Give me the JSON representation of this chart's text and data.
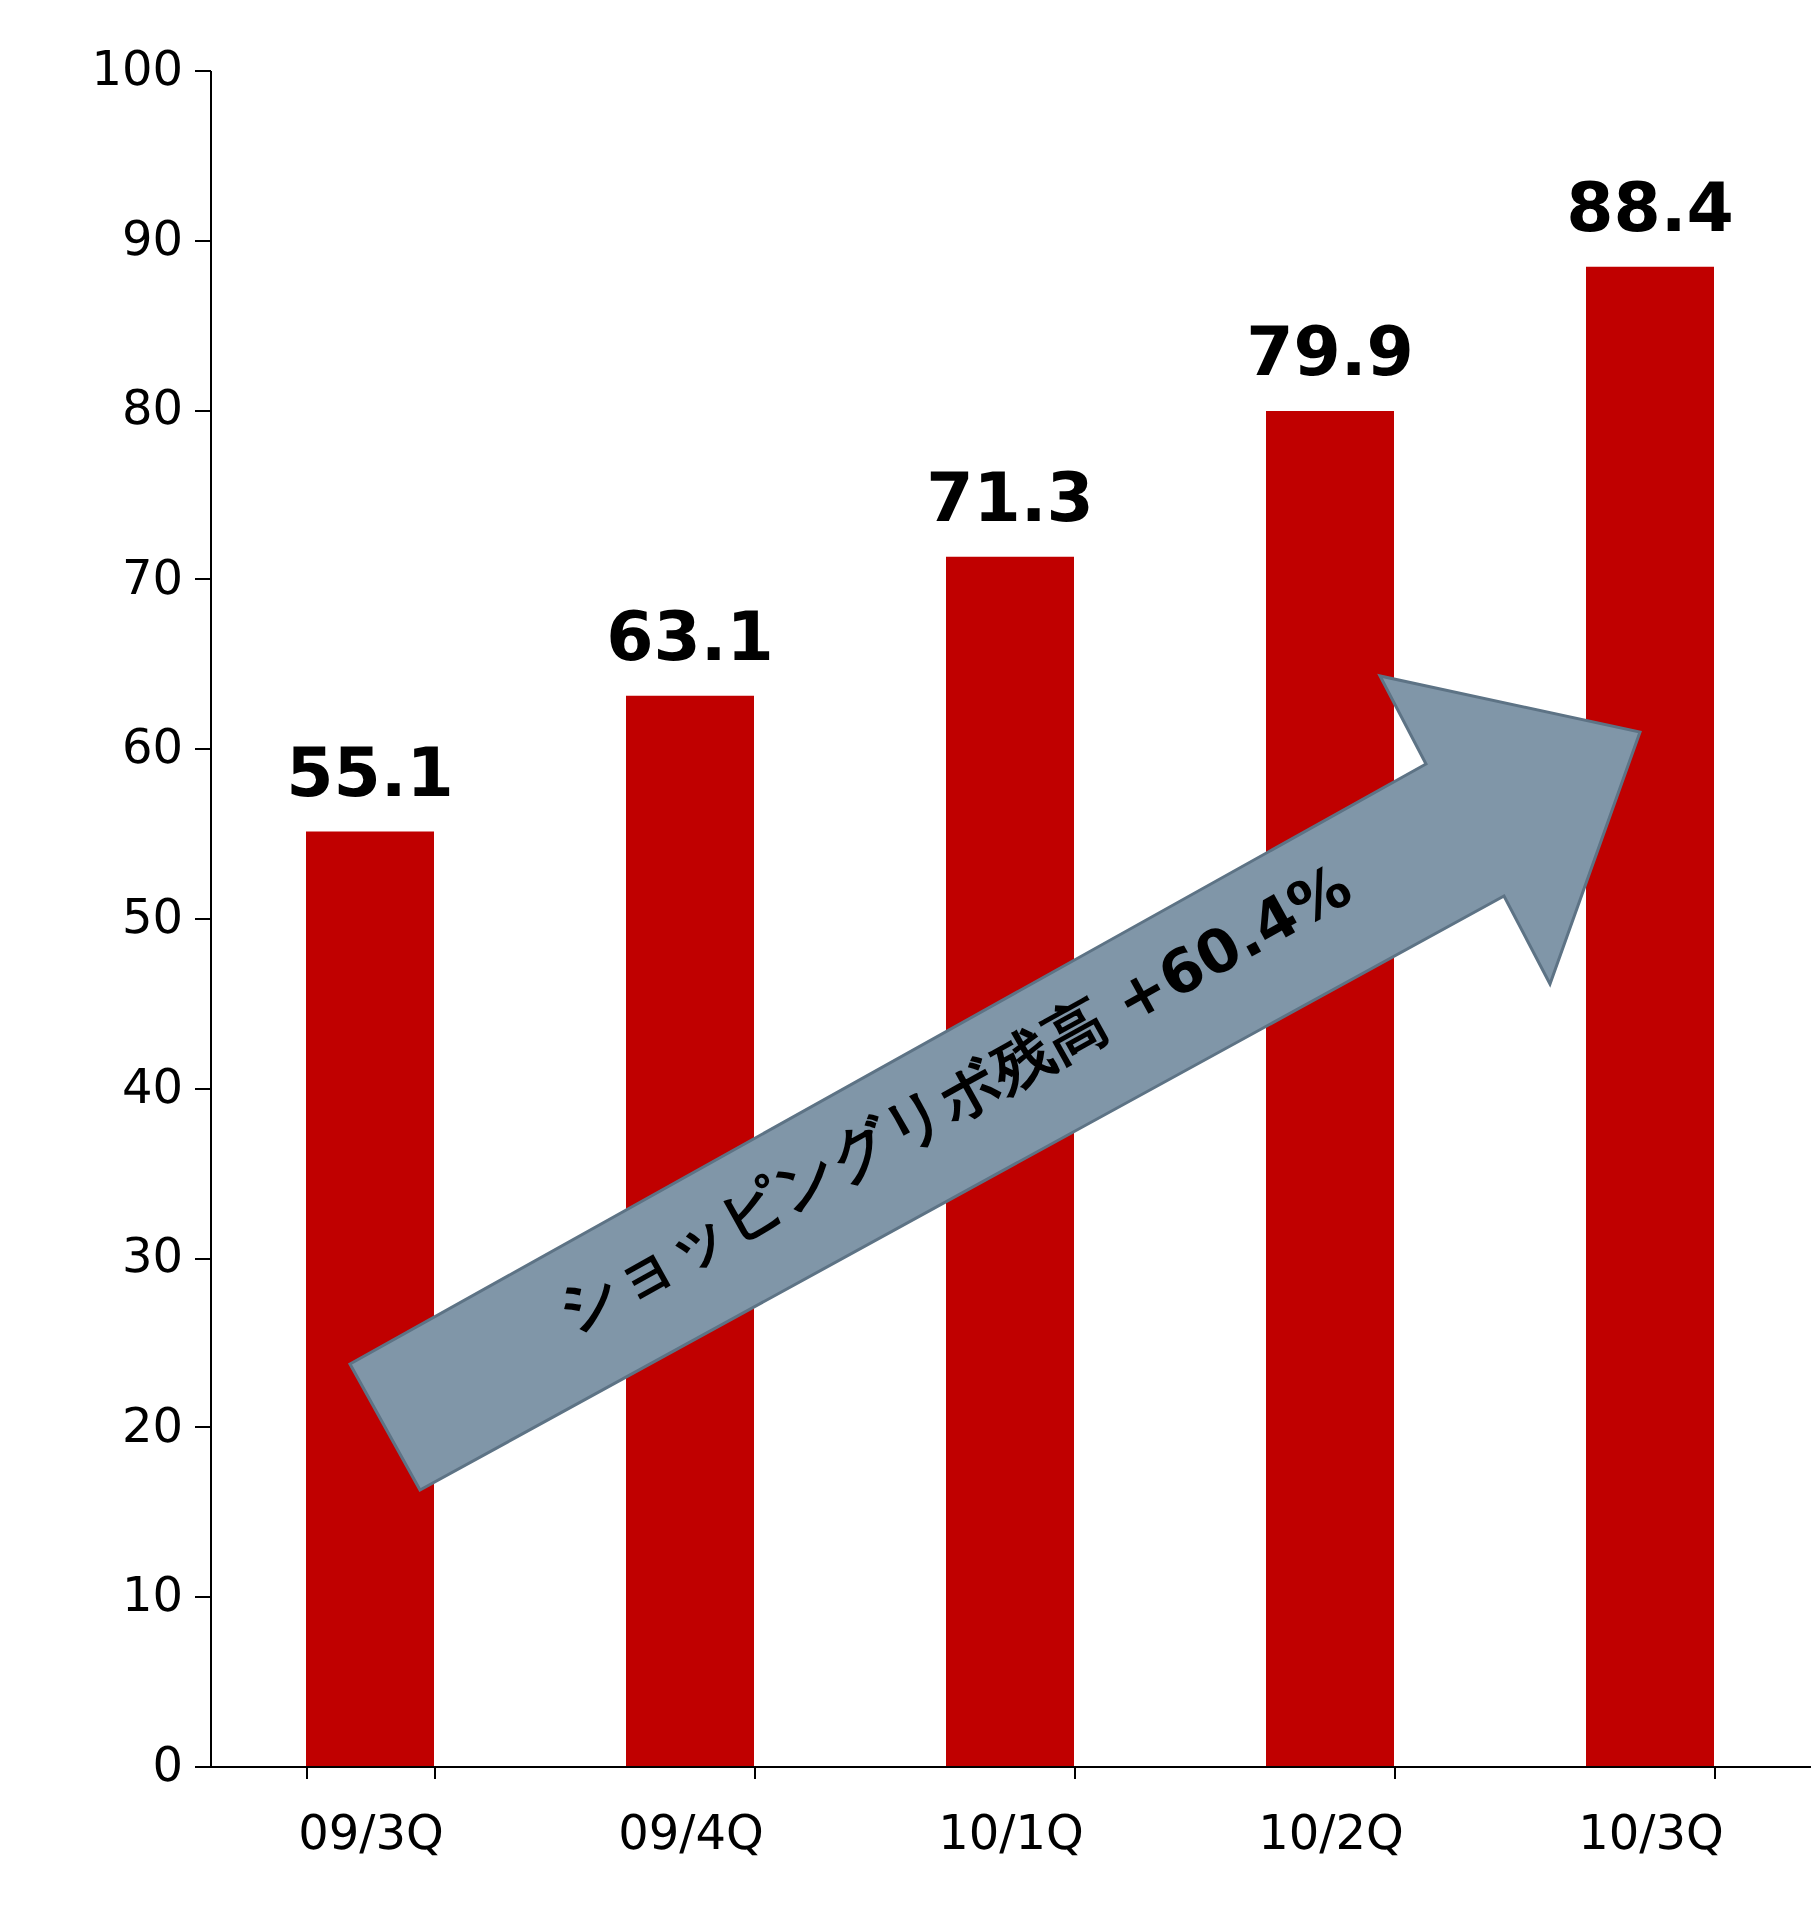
{
  "chart_data": {
    "type": "bar",
    "categories": [
      "09/3Q",
      "09/4Q",
      "10/1Q",
      "10/2Q",
      "10/3Q"
    ],
    "values": [
      55.1,
      63.1,
      71.3,
      79.9,
      88.4
    ],
    "color": "#c00000",
    "ylim": [
      0,
      100
    ],
    "yticks": [
      0,
      10,
      20,
      30,
      40,
      50,
      60,
      70,
      80,
      90,
      100
    ],
    "grid": false,
    "data_labels": true,
    "annotations": [
      "ショッピングリボ残高 +60.4%"
    ]
  }
}
